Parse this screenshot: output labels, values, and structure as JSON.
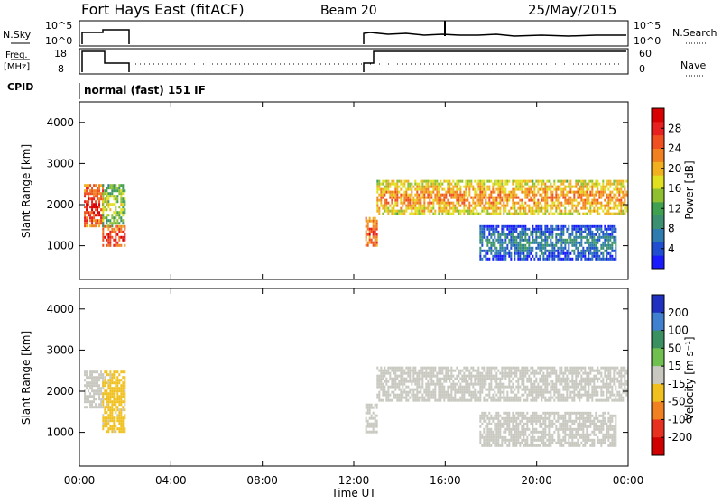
{
  "header": {
    "station": "Fort Hays East (fitACF)",
    "beam": "Beam 20",
    "date": "25/May/2015"
  },
  "top_panels": {
    "nsky_label": "N.Sky",
    "nsky_ticks": [
      "10^5",
      "10^0"
    ],
    "nsearch_label": "N.Search",
    "nsearch_ticks": [
      "10^5",
      "10^0"
    ],
    "freq_label": "Freq.",
    "freq_unit": "[MHz]",
    "freq_ticks": [
      "18",
      "8"
    ],
    "nave_label": "Nave",
    "nave_ticks": [
      "60",
      "0"
    ],
    "cpid_label": "CPID",
    "cpid_value": "normal (fast) 151 IF"
  },
  "axes": {
    "xlabel": "Time UT",
    "x_ticks": [
      "00:00",
      "04:00",
      "08:00",
      "12:00",
      "16:00",
      "20:00",
      "00:00"
    ],
    "ylabel": "Slant Range [km]",
    "y_ticks": [
      "4000",
      "3000",
      "2000",
      "1000"
    ]
  },
  "colorbars": {
    "power": {
      "label": "Power [dB]",
      "ticks": [
        "28",
        "24",
        "20",
        "16",
        "12",
        "8",
        "4"
      ],
      "colors": [
        "#1a1aff",
        "#1f4fd0",
        "#2e7bb0",
        "#3a9070",
        "#3fa04f",
        "#8fc030",
        "#e0e020",
        "#f0b020",
        "#f08020",
        "#f05020",
        "#e82020",
        "#d80000"
      ]
    },
    "velocity": {
      "label": "Velocity [m s⁻¹]",
      "ticks": [
        "200",
        "100",
        "50",
        "15",
        "-15",
        "-50",
        "-100",
        "-200"
      ],
      "colors": [
        "#2030c0",
        "#4080d0",
        "#3a9060",
        "#70c050",
        "#c8c8c0",
        "#f0c020",
        "#f08020",
        "#e83020",
        "#d00000"
      ]
    }
  },
  "chart_data": [
    {
      "type": "heatmap",
      "title": "Power",
      "xlabel": "Time UT",
      "ylabel": "Slant Range [km]",
      "xlim_hours": [
        0,
        24
      ],
      "ylim_km": [
        180,
        4500
      ],
      "colorbar_label": "Power [dB]",
      "colorbar_range": [
        0,
        32
      ],
      "echo_regions": [
        {
          "t": [
            0.2,
            1.0
          ],
          "r": [
            1500,
            2500
          ],
          "value": 26
        },
        {
          "t": [
            1.0,
            2.0
          ],
          "r": [
            1000,
            1500
          ],
          "value": 26
        },
        {
          "t": [
            1.0,
            2.0
          ],
          "r": [
            1500,
            2500
          ],
          "value": 14
        },
        {
          "t": [
            12.5,
            13.0
          ],
          "r": [
            1000,
            1700
          ],
          "value": 24
        },
        {
          "t": [
            13.0,
            24.0
          ],
          "r": [
            1800,
            2600
          ],
          "value": 20
        },
        {
          "t": [
            17.5,
            23.5
          ],
          "r": [
            700,
            1500
          ],
          "value": 6
        }
      ]
    },
    {
      "type": "heatmap",
      "title": "Velocity",
      "xlabel": "Time UT",
      "ylabel": "Slant Range [km]",
      "xlim_hours": [
        0,
        24
      ],
      "ylim_km": [
        180,
        4500
      ],
      "colorbar_label": "Velocity [m s^-1]",
      "colorbar_range": [
        -250,
        250
      ],
      "echo_regions": [
        {
          "t": [
            0.2,
            1.0
          ],
          "r": [
            1600,
            2500
          ],
          "value": 0
        },
        {
          "t": [
            1.0,
            2.0
          ],
          "r": [
            1000,
            2500
          ],
          "value": -40
        },
        {
          "t": [
            12.5,
            13.0
          ],
          "r": [
            1000,
            1700
          ],
          "value": 0
        },
        {
          "t": [
            13.0,
            24.0
          ],
          "r": [
            1800,
            2600
          ],
          "value": 0
        },
        {
          "t": [
            17.5,
            23.5
          ],
          "r": [
            700,
            1500
          ],
          "value": 0
        }
      ]
    }
  ]
}
